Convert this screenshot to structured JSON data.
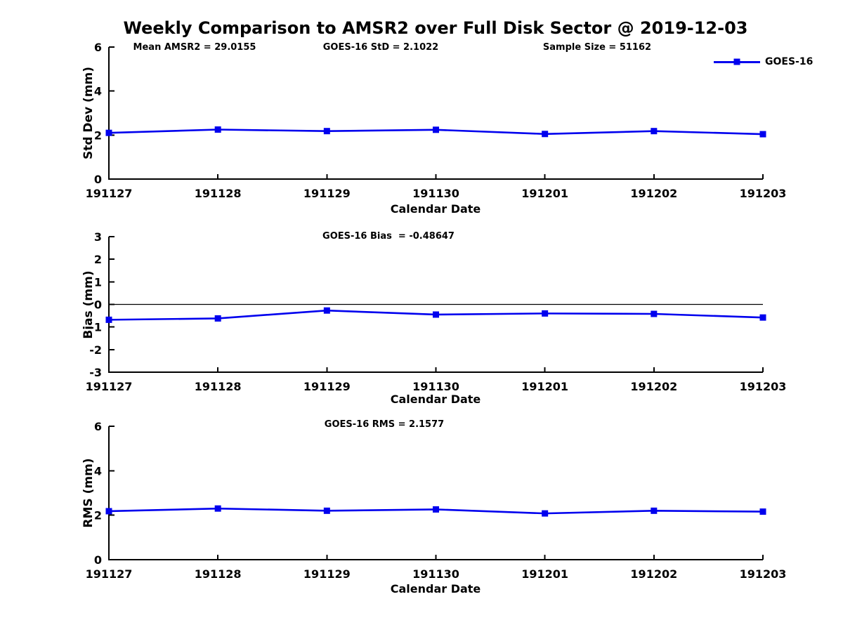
{
  "title": "Weekly Comparison to AMSR2 over Full Disk Sector @ 2019-12-03",
  "legend": {
    "label": "GOES-16"
  },
  "colors": {
    "line": "#0000EE",
    "axis": "#000000",
    "text": "#000000",
    "background": "#FFFFFF"
  },
  "chart_data": [
    {
      "id": "stddev",
      "type": "line",
      "annotations": [
        "Mean AMSR2 = 29.0155",
        "GOES-16 StD = 2.1022",
        "Sample Size = 51162"
      ],
      "ylabel": "Std Dev (mm)",
      "xlabel": "Calendar Date",
      "categories": [
        "191127",
        "191128",
        "191129",
        "191130",
        "191201",
        "191202",
        "191203"
      ],
      "series": [
        {
          "name": "GOES-16",
          "values": [
            2.1,
            2.25,
            2.18,
            2.24,
            2.05,
            2.18,
            2.04
          ]
        }
      ],
      "ylim": [
        0,
        6
      ],
      "yticks": [
        0,
        2,
        4,
        6
      ],
      "zero_line": false,
      "grid": false,
      "legend_position": "top-right"
    },
    {
      "id": "bias",
      "type": "line",
      "annotations": [
        "GOES-16 Bias  = -0.48647"
      ],
      "ylabel": "Bias (mm)",
      "xlabel": "Calendar Date",
      "categories": [
        "191127",
        "191128",
        "191129",
        "191130",
        "191201",
        "191202",
        "191203"
      ],
      "series": [
        {
          "name": "GOES-16",
          "values": [
            -0.68,
            -0.62,
            -0.27,
            -0.45,
            -0.4,
            -0.42,
            -0.58
          ]
        }
      ],
      "ylim": [
        -3,
        3
      ],
      "yticks": [
        -3,
        -2,
        -1,
        0,
        1,
        2,
        3
      ],
      "zero_line": true,
      "grid": false
    },
    {
      "id": "rms",
      "type": "line",
      "annotations": [
        "GOES-16 RMS = 2.1577"
      ],
      "ylabel": "RMS (mm)",
      "xlabel": "Calendar Date",
      "categories": [
        "191127",
        "191128",
        "191129",
        "191130",
        "191201",
        "191202",
        "191203"
      ],
      "series": [
        {
          "name": "GOES-16",
          "values": [
            2.18,
            2.3,
            2.2,
            2.26,
            2.08,
            2.2,
            2.16
          ]
        }
      ],
      "ylim": [
        0,
        6
      ],
      "yticks": [
        0,
        2,
        4,
        6
      ],
      "zero_line": false,
      "grid": false
    }
  ]
}
